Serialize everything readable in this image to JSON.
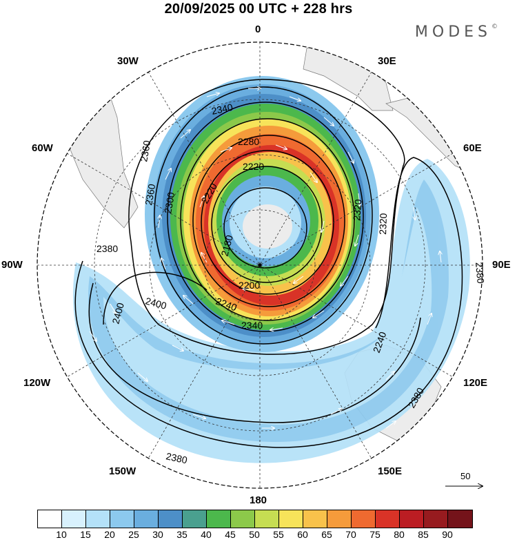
{
  "title": "20/09/2025  00 UTC  + 228 hrs",
  "brand": "MODES",
  "brand_mark": "©",
  "longitude_labels": {
    "top": "0",
    "top_right": "30E",
    "top_left": "30W",
    "upper_left": "60W",
    "upper_right": "60E",
    "left": "90W",
    "right": "90E",
    "lower_left": "120W",
    "lower_right": "120E",
    "bottom_left": "150W",
    "bottom_right": "150E",
    "bottom": "180"
  },
  "contour_labels": [
    "2340",
    "2280",
    "2220",
    "2220",
    "2180",
    "2200",
    "2240",
    "2340",
    "2360",
    "2300",
    "2320",
    "2380",
    "2400",
    "2400",
    "2380",
    "2380",
    "2380",
    "2360",
    "2320",
    "2240"
  ],
  "reference_vector": {
    "label": "50"
  },
  "colorbar": {
    "colors": [
      "#ffffff",
      "#d8f1fd",
      "#b4e1f8",
      "#8cc9ee",
      "#6aaedf",
      "#4d8fc8",
      "#4aa08f",
      "#4cb84c",
      "#8cc94a",
      "#c6dd52",
      "#f7e35a",
      "#f8c24b",
      "#f59b3b",
      "#ef6a30",
      "#d93327",
      "#bb1d23",
      "#971b1f",
      "#74131a"
    ],
    "ticks": [
      "10",
      "15",
      "20",
      "25",
      "30",
      "35",
      "40",
      "45",
      "50",
      "55",
      "60",
      "65",
      "70",
      "75",
      "80",
      "85",
      "90"
    ]
  }
}
